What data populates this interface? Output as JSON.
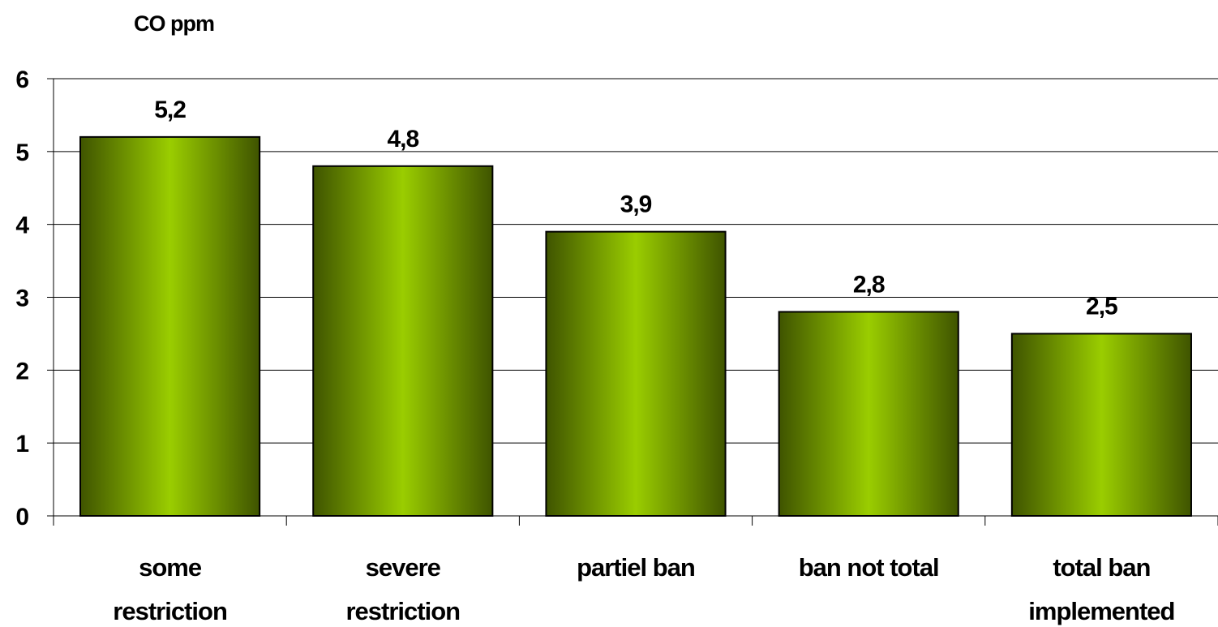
{
  "chart_data": {
    "type": "bar",
    "ylabel": "CO ppm",
    "categories": [
      [
        "some",
        "restriction"
      ],
      [
        "severe",
        "restriction"
      ],
      [
        "partiel ban"
      ],
      [
        "ban not total"
      ],
      [
        "total ban",
        "implemented"
      ]
    ],
    "values": [
      5.2,
      4.8,
      3.9,
      2.8,
      2.5
    ],
    "data_labels": [
      "5,2",
      "4,8",
      "3,9",
      "2,8",
      "2,5"
    ],
    "yticks": [
      "0",
      "1",
      "2",
      "3",
      "4",
      "5",
      "6"
    ],
    "ylim": [
      0,
      6
    ],
    "grid": true,
    "legend": "none",
    "colors": {
      "bar_center": "#9acd00",
      "bar_edge": "#3f5400",
      "grid": "#000000"
    }
  }
}
